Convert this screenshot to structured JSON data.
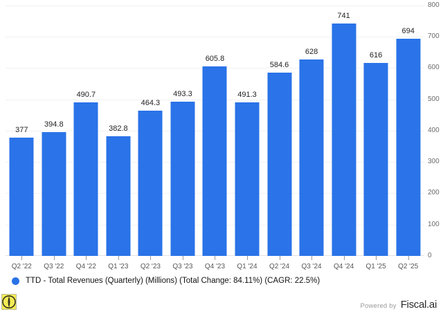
{
  "chart_data": {
    "type": "bar",
    "title": "",
    "categories": [
      "Q2 '22",
      "Q3 '22",
      "Q4 '22",
      "Q1 '23",
      "Q2 '23",
      "Q3 '23",
      "Q4 '23",
      "Q1 '24",
      "Q2 '24",
      "Q3 '24",
      "Q4 '24",
      "Q1 '25",
      "Q2 '25"
    ],
    "series": [
      {
        "name": "TTD - Total Revenues (Quarterly) (Millions)",
        "values": [
          377,
          394.8,
          490.7,
          382.8,
          464.3,
          493.3,
          605.8,
          491.3,
          584.6,
          628,
          741,
          616,
          694
        ],
        "color": "#2a73e8"
      }
    ],
    "data_labels_shown": true,
    "xlabel": "",
    "ylabel": "",
    "ylim": [
      0,
      800
    ],
    "y_ticks": [
      0,
      100,
      200,
      300,
      400,
      500,
      600,
      700,
      800
    ],
    "y_axis_side": "right",
    "grid": true,
    "legend_position": "bottom-left",
    "total_change": "84.11%",
    "cagr": "22.5%"
  },
  "legend": {
    "marker_color": "#2a73e8",
    "label": "TTD - Total Revenues (Quarterly) (Millions) (Total Change: 84.11%) (CAGR: 22.5%)"
  },
  "footer": {
    "powered_by": "Powered by",
    "brand": "Fiscal.ai"
  },
  "icons": {
    "watermark": "eye-icon"
  },
  "colors": {
    "bar": "#2a73e8",
    "gridline": "#f1f1f1",
    "axis_baseline": "#e2e2e2",
    "value_label": "#1f1f1f",
    "x_label": "#565656",
    "y_label": "#6b6b6b",
    "watermark_yellow": "#f3ec55"
  }
}
